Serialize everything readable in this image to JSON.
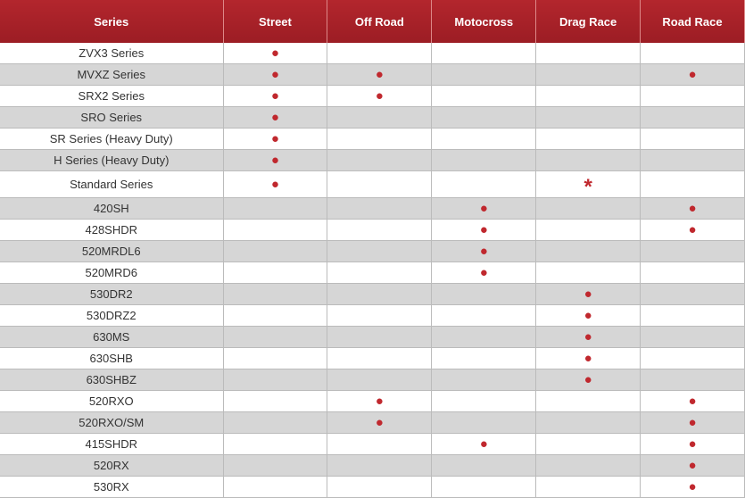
{
  "table": {
    "header": [
      "Series",
      "Street",
      "Off Road",
      "Motocross",
      "Drag Race",
      "Road Race"
    ],
    "rows": [
      [
        "ZVX3 Series",
        "●",
        null,
        null,
        null,
        null
      ],
      [
        "MVXZ Series",
        "●",
        "●",
        null,
        null,
        "●"
      ],
      [
        "SRX2 Series",
        "●",
        "●",
        null,
        null,
        null
      ],
      [
        "SRO Series",
        "●",
        null,
        null,
        null,
        null
      ],
      [
        "SR Series (Heavy Duty)",
        "●",
        null,
        null,
        null,
        null
      ],
      [
        "H Series (Heavy Duty)",
        "●",
        null,
        null,
        null,
        null
      ],
      [
        "Standard Series",
        "●",
        null,
        null,
        "*",
        null
      ],
      [
        "420SH",
        null,
        null,
        "●",
        null,
        "●"
      ],
      [
        "428SHDR",
        null,
        null,
        "●",
        null,
        "●"
      ],
      [
        "520MRDL6",
        null,
        null,
        "●",
        null,
        null
      ],
      [
        "520MRD6",
        null,
        null,
        "●",
        null,
        null
      ],
      [
        "530DR2",
        null,
        null,
        null,
        "●",
        null
      ],
      [
        "530DRZ2",
        null,
        null,
        null,
        "●",
        null
      ],
      [
        "630MS",
        null,
        null,
        null,
        "●",
        null
      ],
      [
        "630SHB",
        null,
        null,
        null,
        "●",
        null
      ],
      [
        "630SHBZ",
        null,
        null,
        null,
        "●",
        null
      ],
      [
        "520RXO",
        null,
        "●",
        null,
        null,
        "●"
      ],
      [
        "520RXO/SM",
        null,
        "●",
        null,
        null,
        "●"
      ],
      [
        "415SHDR",
        null,
        null,
        "●",
        null,
        "●"
      ],
      [
        "520RX",
        null,
        null,
        null,
        null,
        "●"
      ],
      [
        "530RX",
        null,
        null,
        null,
        null,
        "●"
      ]
    ]
  }
}
